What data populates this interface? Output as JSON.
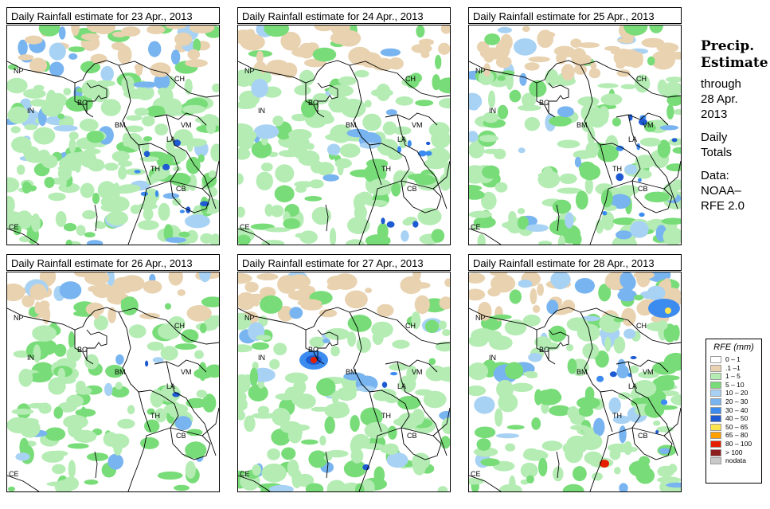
{
  "panels": [
    {
      "title": "Daily Rainfall estimate for  23 Apr., 2013",
      "seed": 23,
      "land": 0.55,
      "wet": 0.55,
      "heavy": 0.08,
      "hot": []
    },
    {
      "title": "Daily Rainfall estimate for  24 Apr., 2013",
      "seed": 24,
      "land": 0.45,
      "wet": 0.42,
      "heavy": 0.05,
      "hot": []
    },
    {
      "title": "Daily Rainfall estimate for  25 Apr., 2013",
      "seed": 25,
      "land": 0.5,
      "wet": 0.4,
      "heavy": 0.09,
      "hot": []
    },
    {
      "title": "Daily Rainfall estimate for  26 Apr., 2013",
      "seed": 26,
      "land": 0.4,
      "wet": 0.35,
      "heavy": 0.04,
      "hot": []
    },
    {
      "title": "Daily Rainfall estimate for  27 Apr., 2013",
      "seed": 27,
      "land": 0.5,
      "wet": 0.38,
      "heavy": 0.07,
      "hot": [
        "bd-storm"
      ]
    },
    {
      "title": "Daily Rainfall estimate for  28 Apr., 2013",
      "seed": 28,
      "land": 0.45,
      "wet": 0.4,
      "heavy": 0.08,
      "hot": [
        "ch-storm"
      ]
    }
  ],
  "map_labels": [
    "NP",
    "IN",
    "BG",
    "BM",
    "CH",
    "VM",
    "LA",
    "TH",
    "CB",
    "CE"
  ],
  "side": {
    "heading": [
      "Precip.",
      "Estimate"
    ],
    "period": [
      "through",
      "28 Apr.",
      "2013"
    ],
    "kind": [
      "Daily",
      "Totals"
    ],
    "source": [
      "Data:",
      "NOAA–",
      "RFE 2.0"
    ]
  },
  "legend": {
    "title": "RFE (mm)",
    "items": [
      {
        "label": "0 – 1",
        "color": "#ffffff"
      },
      {
        "label": ".1 –1",
        "color": "#e8d2b0"
      },
      {
        "label": "1 – 5",
        "color": "#b4ecb4"
      },
      {
        "label": "5 – 10",
        "color": "#78dc78"
      },
      {
        "label": "10 – 20",
        "color": "#a8d2f4"
      },
      {
        "label": "20 – 30",
        "color": "#78b4f0"
      },
      {
        "label": "30 – 40",
        "color": "#3c8cf0"
      },
      {
        "label": "40 – 50",
        "color": "#1e5ad2"
      },
      {
        "label": "50 – 65",
        "color": "#ffe650"
      },
      {
        "label": "65 – 80",
        "color": "#ffa000"
      },
      {
        "label": "80 – 100",
        "color": "#e61e00"
      },
      {
        "label": "> 100",
        "color": "#8c1e1e"
      },
      {
        "label": "nodata",
        "color": "#c8c8c8"
      }
    ]
  }
}
